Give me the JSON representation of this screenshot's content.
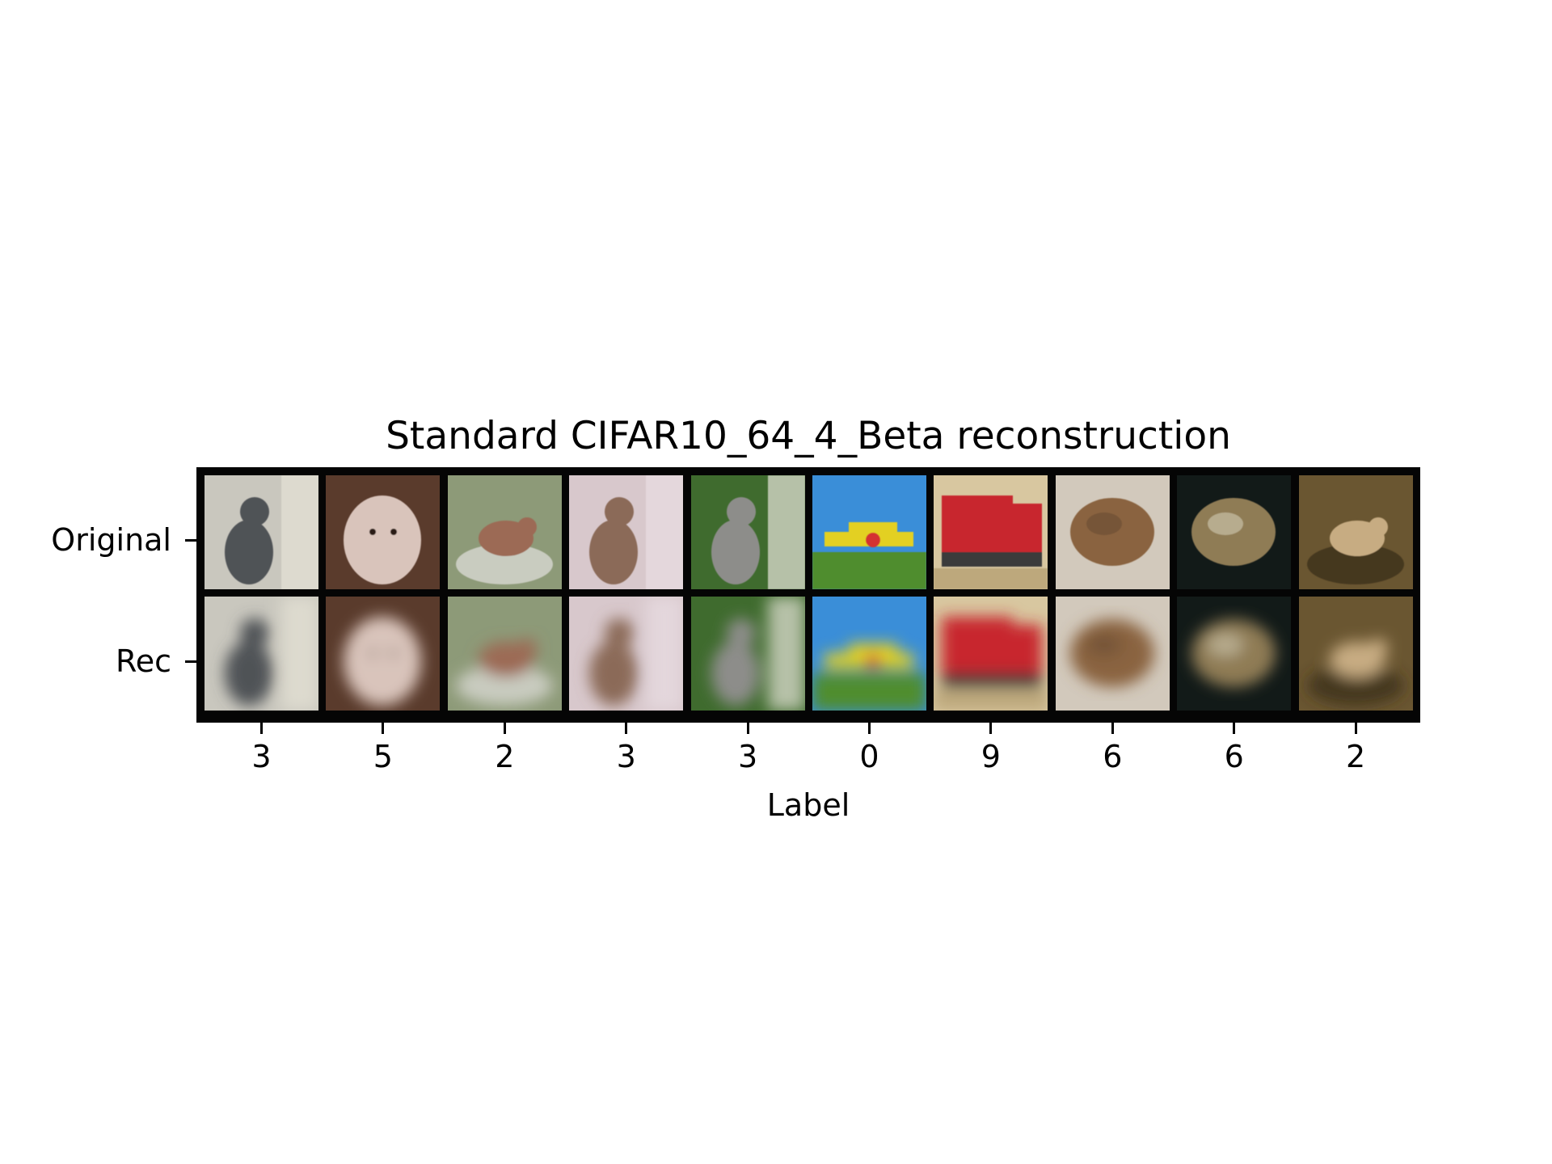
{
  "chart_data": {
    "type": "image-grid",
    "title": "Standard CIFAR10_64_4_Beta reconstruction",
    "xlabel": "Label",
    "ylabel": "",
    "row_labels": [
      "Original",
      "Rec"
    ],
    "column_labels": [
      "3",
      "5",
      "2",
      "3",
      "3",
      "0",
      "9",
      "6",
      "6",
      "2"
    ],
    "tiles": [
      {
        "subject": "cat",
        "bg": "#c9c7be",
        "fg": "#505257",
        "accent": "#e6e2d6"
      },
      {
        "subject": "dog",
        "bg": "#5a3b2c",
        "fg": "#d9c4bb",
        "accent": "#2a1a12"
      },
      {
        "subject": "bird",
        "bg": "#8d9a78",
        "fg": "#9c6a55",
        "accent": "#d8d8d2"
      },
      {
        "subject": "cat",
        "bg": "#d8c8cc",
        "fg": "#8b6b58",
        "accent": "#e8dde2"
      },
      {
        "subject": "cat",
        "bg": "#3f6b2e",
        "fg": "#8d8d8a",
        "accent": "#e8e6dc"
      },
      {
        "subject": "airplane",
        "bg": "#3a8ed8",
        "fg": "#e3d021",
        "accent": "#4f8d2d"
      },
      {
        "subject": "truck",
        "bg": "#d8c7a0",
        "fg": "#c8262e",
        "accent": "#3a3a3a"
      },
      {
        "subject": "frog",
        "bg": "#d2c9bc",
        "fg": "#8a6440",
        "accent": "#6e4e33"
      },
      {
        "subject": "frog",
        "bg": "#121a18",
        "fg": "#8f7b55",
        "accent": "#c8c2a6"
      },
      {
        "subject": "bird",
        "bg": "#6a5631",
        "fg": "#c7ac82",
        "accent": "#3c2f1b"
      }
    ],
    "grid": false
  }
}
